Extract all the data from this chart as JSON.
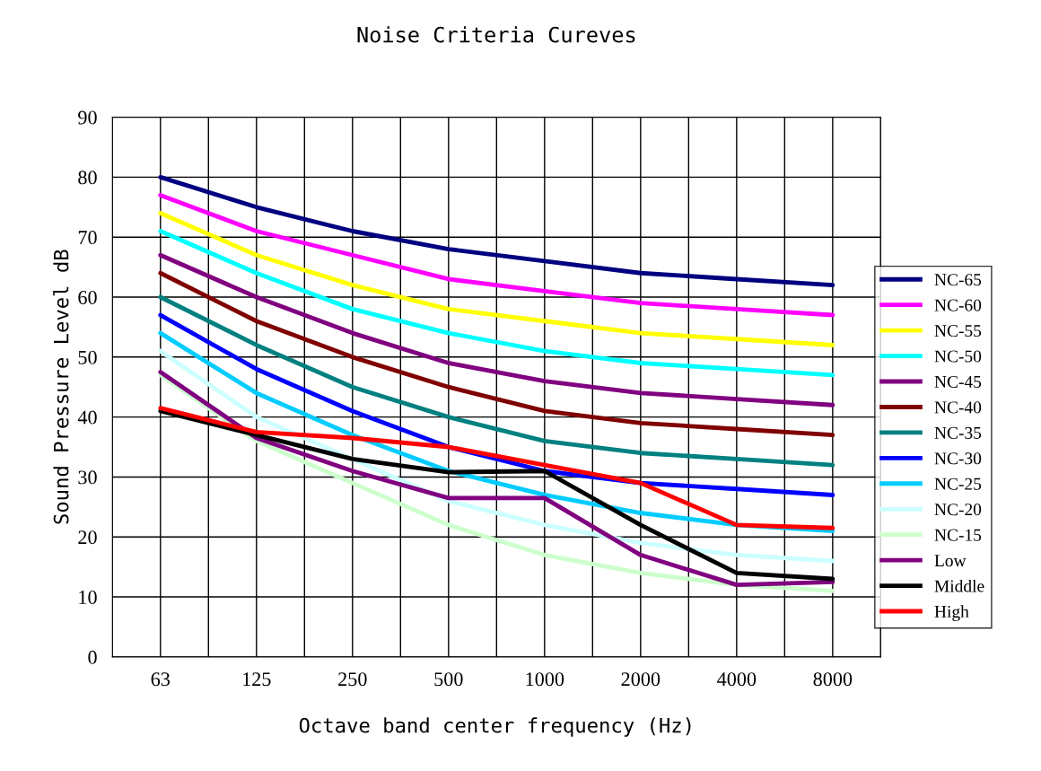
{
  "chart_data": {
    "type": "line",
    "title": "Noise Criteria Cureves",
    "xlabel": "Octave band center frequency (Hz)",
    "ylabel": "Sound Pressure Level dB",
    "categories": [
      "63",
      "125",
      "250",
      "500",
      "1000",
      "2000",
      "4000",
      "8000"
    ],
    "ylim": [
      0,
      90
    ],
    "yticks": [
      0,
      10,
      20,
      30,
      40,
      50,
      60,
      70,
      80,
      90
    ],
    "grid": true,
    "legend": "right",
    "marker": "none",
    "line_style": "solid",
    "series": [
      {
        "name": "NC-65",
        "color": "#000080",
        "values": [
          80,
          75,
          71,
          68,
          66,
          64,
          63,
          62
        ]
      },
      {
        "name": "NC-60",
        "color": "#ff00ff",
        "values": [
          77,
          71,
          67,
          63,
          61,
          59,
          58,
          57
        ]
      },
      {
        "name": "NC-55",
        "color": "#ffff00",
        "values": [
          74,
          67,
          62,
          58,
          56,
          54,
          53,
          52
        ]
      },
      {
        "name": "NC-50",
        "color": "#00ffff",
        "values": [
          71,
          64,
          58,
          54,
          51,
          49,
          48,
          47
        ]
      },
      {
        "name": "NC-45",
        "color": "#800080",
        "values": [
          67,
          60,
          54,
          49,
          46,
          44,
          43,
          42
        ]
      },
      {
        "name": "NC-40",
        "color": "#800000",
        "values": [
          64,
          56,
          50,
          45,
          41,
          39,
          38,
          37
        ]
      },
      {
        "name": "NC-35",
        "color": "#008080",
        "values": [
          60,
          52,
          45,
          40,
          36,
          34,
          33,
          32
        ]
      },
      {
        "name": "NC-30",
        "color": "#0000ff",
        "values": [
          57,
          48,
          41,
          35,
          31,
          29,
          28,
          27
        ]
      },
      {
        "name": "NC-25",
        "color": "#00ccff",
        "values": [
          54,
          44,
          37,
          31,
          27,
          24,
          22,
          21
        ]
      },
      {
        "name": "NC-20",
        "color": "#ccffff",
        "values": [
          51,
          40,
          33,
          26,
          22,
          19,
          17,
          16
        ]
      },
      {
        "name": "NC-15",
        "color": "#ccffcc",
        "values": [
          47,
          36,
          29,
          22,
          17,
          14,
          12,
          11
        ]
      },
      {
        "name": "Low",
        "color": "#800080",
        "values": [
          47.5,
          36.5,
          31,
          26.5,
          26.5,
          17,
          12,
          12.5
        ]
      },
      {
        "name": "Middle",
        "color": "#000000",
        "values": [
          41,
          37,
          33,
          30.8,
          31,
          22,
          14,
          13
        ]
      },
      {
        "name": "High",
        "color": "#ff0000",
        "values": [
          41.5,
          37.5,
          36.5,
          35,
          32,
          29,
          22,
          21.5
        ]
      }
    ]
  }
}
